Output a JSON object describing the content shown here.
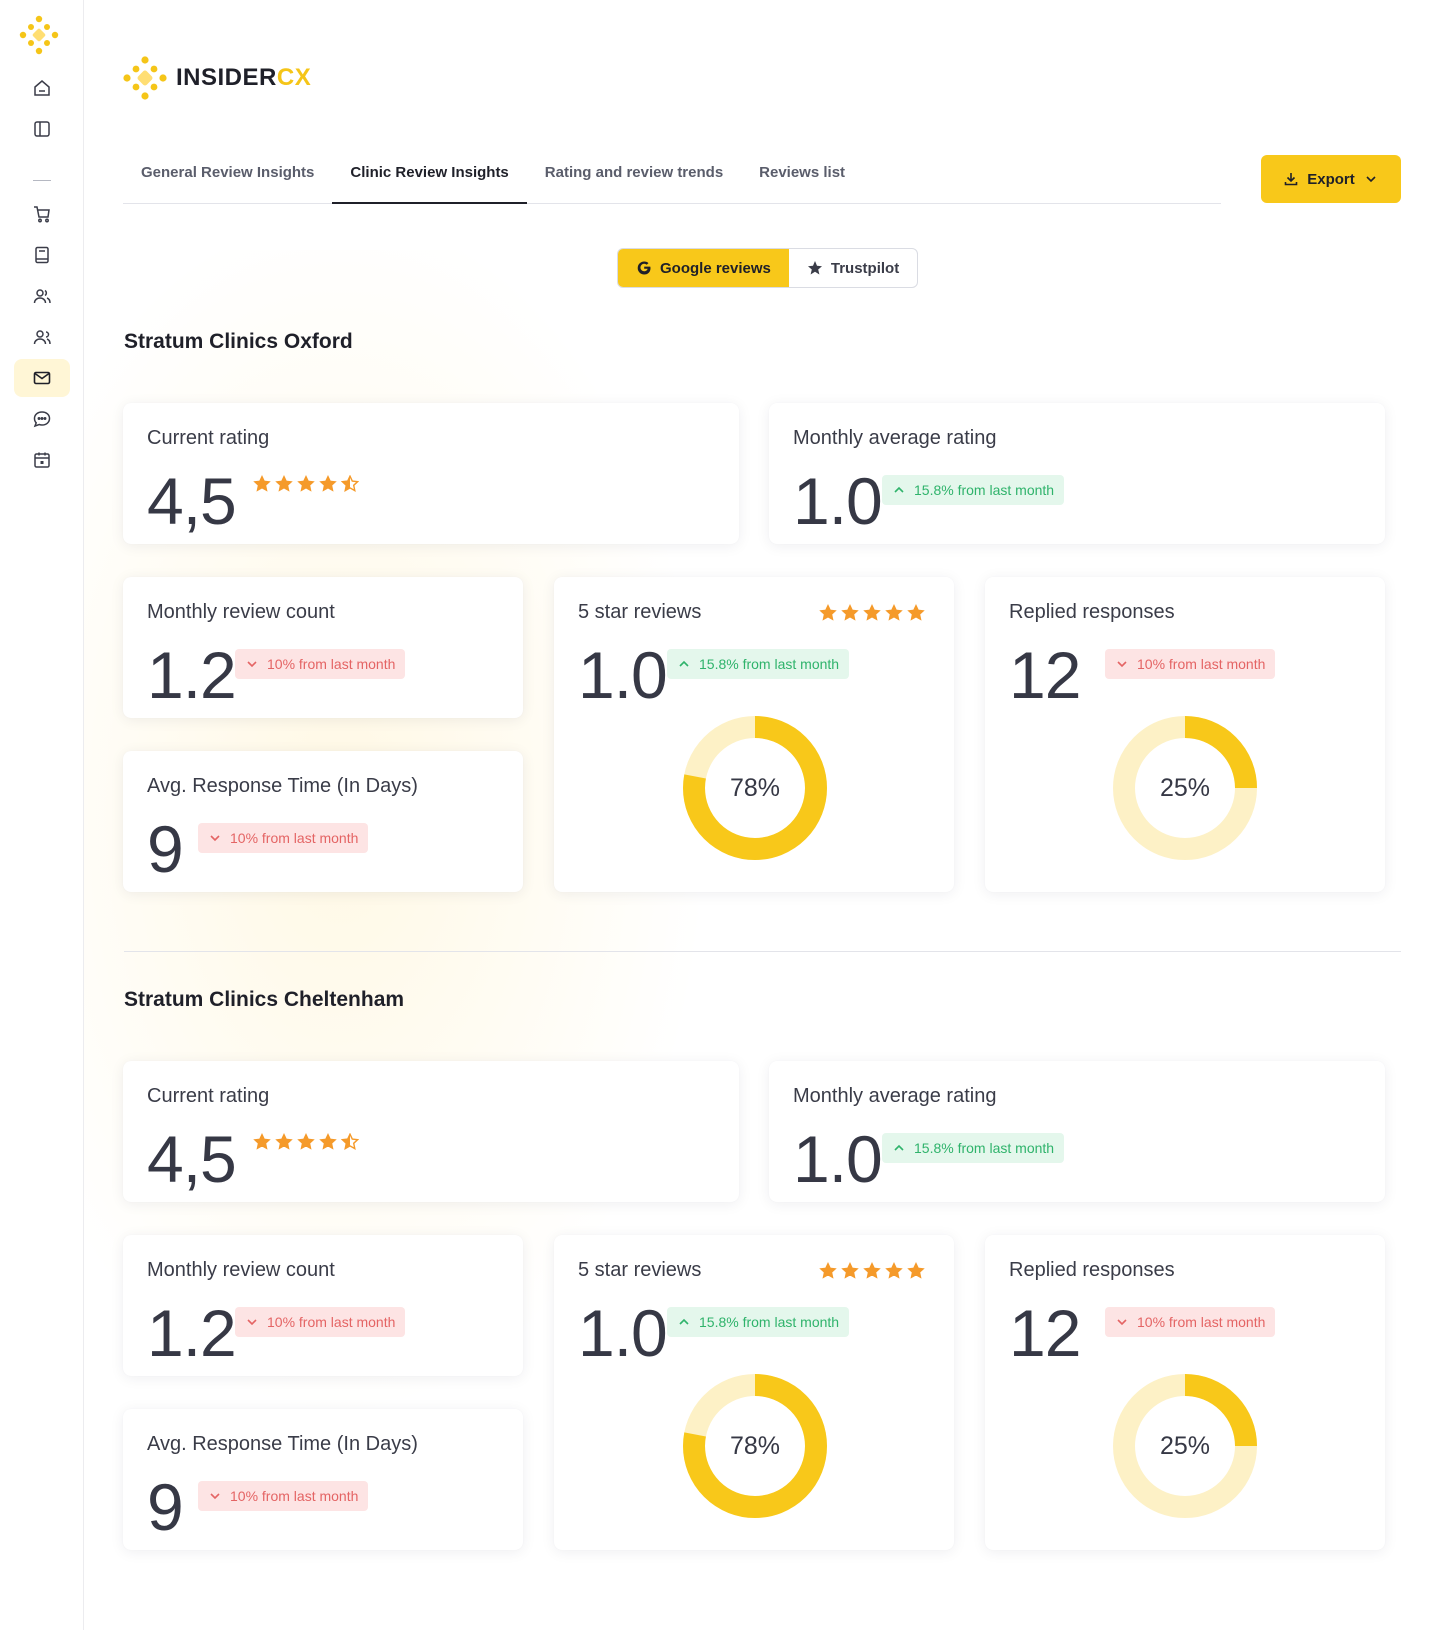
{
  "app": {
    "brand_main": "INSIDER",
    "brand_accent": "CX",
    "accent_color": "#f8c81a"
  },
  "tabs": [
    {
      "label": "General Review Insights",
      "active": false
    },
    {
      "label": "Clinic Review Insights",
      "active": true
    },
    {
      "label": "Rating and review trends",
      "active": false
    },
    {
      "label": "Reviews list",
      "active": false
    }
  ],
  "export_label": "Export",
  "sources": {
    "google": "Google reviews",
    "trustpilot": "Trustpilot",
    "selected": "google"
  },
  "sidebar_icons": [
    "home-icon",
    "panel-icon",
    "cart-icon",
    "book-icon",
    "users-icon",
    "team-icon",
    "mail-icon",
    "chat-icon",
    "calendar-icon"
  ],
  "clinics": [
    {
      "name": "Stratum Clinics Oxford",
      "current_rating": {
        "label": "Current rating",
        "value": "4,5",
        "stars": 4.5
      },
      "monthly_average": {
        "label": "Monthly average rating",
        "value": "1.0",
        "change": "15.8% from last month",
        "trend": "up"
      },
      "review_count": {
        "label": "Monthly review count",
        "value": "1.2",
        "change": "10% from last month",
        "trend": "down"
      },
      "response_time": {
        "label": "Avg. Response Time (In Days)",
        "value": "9",
        "change": "10% from last month",
        "trend": "down"
      },
      "five_star": {
        "label": "5 star reviews",
        "value": "1.0",
        "change": "15.8% from last month",
        "trend": "up",
        "percent": 78,
        "percent_label": "78%",
        "stars": 5
      },
      "replied": {
        "label": "Replied responses",
        "value": "12",
        "change": "10% from last month",
        "trend": "down",
        "percent": 25,
        "percent_label": "25%"
      }
    },
    {
      "name": "Stratum Clinics Cheltenham",
      "current_rating": {
        "label": "Current rating",
        "value": "4,5",
        "stars": 4.5
      },
      "monthly_average": {
        "label": "Monthly average rating",
        "value": "1.0",
        "change": "15.8% from last month",
        "trend": "up"
      },
      "review_count": {
        "label": "Monthly review count",
        "value": "1.2",
        "change": "10% from last month",
        "trend": "down"
      },
      "response_time": {
        "label": "Avg. Response Time (In Days)",
        "value": "9",
        "change": "10% from last month",
        "trend": "down"
      },
      "five_star": {
        "label": "5 star reviews",
        "value": "1.0",
        "change": "15.8% from last month",
        "trend": "up",
        "percent": 78,
        "percent_label": "78%",
        "stars": 5
      },
      "replied": {
        "label": "Replied responses",
        "value": "12",
        "change": "10% from last month",
        "trend": "down",
        "percent": 25,
        "percent_label": "25%"
      }
    }
  ]
}
